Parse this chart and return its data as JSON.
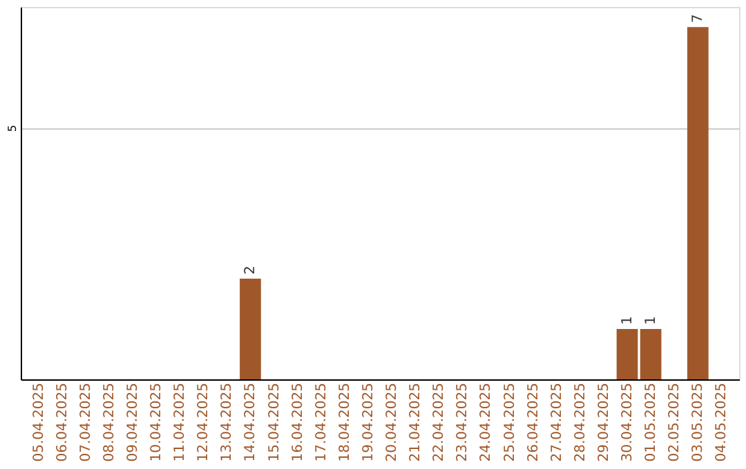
{
  "chart_data": {
    "type": "bar",
    "categories": [
      "05.04.2025",
      "06.04.2025",
      "07.04.2025",
      "08.04.2025",
      "09.04.2025",
      "10.04.2025",
      "11.04.2025",
      "12.04.2025",
      "13.04.2025",
      "14.04.2025",
      "15.04.2025",
      "16.04.2025",
      "17.04.2025",
      "18.04.2025",
      "19.04.2025",
      "20.04.2025",
      "21.04.2025",
      "22.04.2025",
      "23.04.2025",
      "24.04.2025",
      "25.04.2025",
      "26.04.2025",
      "27.04.2025",
      "28.04.2025",
      "29.04.2025",
      "30.04.2025",
      "01.05.2025",
      "02.05.2025",
      "03.05.2025",
      "04.05.2025"
    ],
    "values": [
      0,
      0,
      0,
      0,
      0,
      0,
      0,
      0,
      0,
      2,
      0,
      0,
      0,
      0,
      0,
      0,
      0,
      0,
      0,
      0,
      0,
      0,
      0,
      0,
      0,
      1,
      1,
      0,
      7,
      0
    ],
    "value_labels": [
      null,
      null,
      null,
      null,
      null,
      null,
      null,
      null,
      null,
      "2",
      null,
      null,
      null,
      null,
      null,
      null,
      null,
      null,
      null,
      null,
      null,
      null,
      null,
      null,
      null,
      "1",
      "1",
      null,
      "7",
      null
    ],
    "color": "#a0582a",
    "ylim": [
      0,
      7.4
    ],
    "yticks": [
      5
    ],
    "grid": "y"
  }
}
